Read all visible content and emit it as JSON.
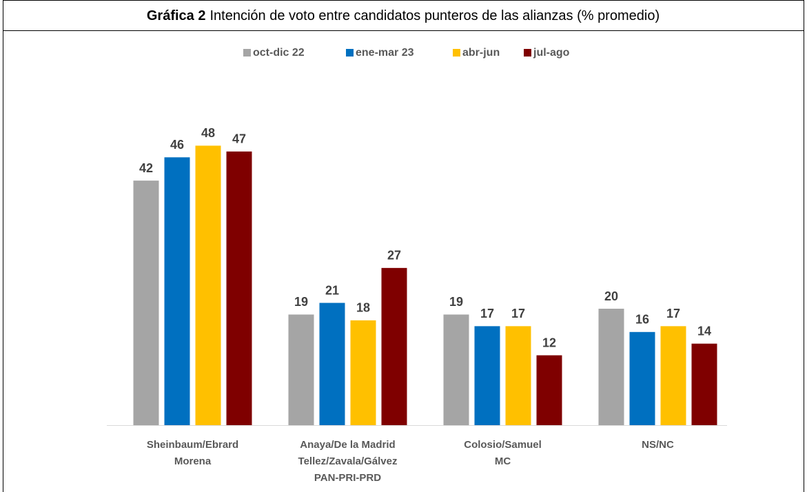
{
  "chart_data": {
    "type": "bar",
    "title_label": "Gráfica 2",
    "title": "Intención de voto entre candidatos punteros de las alianzas (% promedio)",
    "categories": [
      [
        "Sheinbaum/Ebrard",
        "Morena"
      ],
      [
        "Anaya/De la Madrid",
        "Tellez/Zavala/Gálvez",
        "PAN-PRI-PRD"
      ],
      [
        "Colosio/Samuel",
        "MC"
      ],
      [
        "NS/NC"
      ]
    ],
    "series": [
      {
        "name": "oct-dic 22",
        "color": "#a5a5a5",
        "values": [
          42,
          19,
          19,
          20
        ]
      },
      {
        "name": "ene-mar 23",
        "color": "#0070c0",
        "values": [
          46,
          21,
          17,
          16
        ]
      },
      {
        "name": "abr-jun",
        "color": "#ffc000",
        "values": [
          48,
          18,
          17,
          17
        ]
      },
      {
        "name": "jul-ago",
        "color": "#7f0000",
        "values": [
          47,
          27,
          12,
          14
        ]
      }
    ],
    "ylim": [
      0,
      60
    ],
    "legend": "top"
  }
}
